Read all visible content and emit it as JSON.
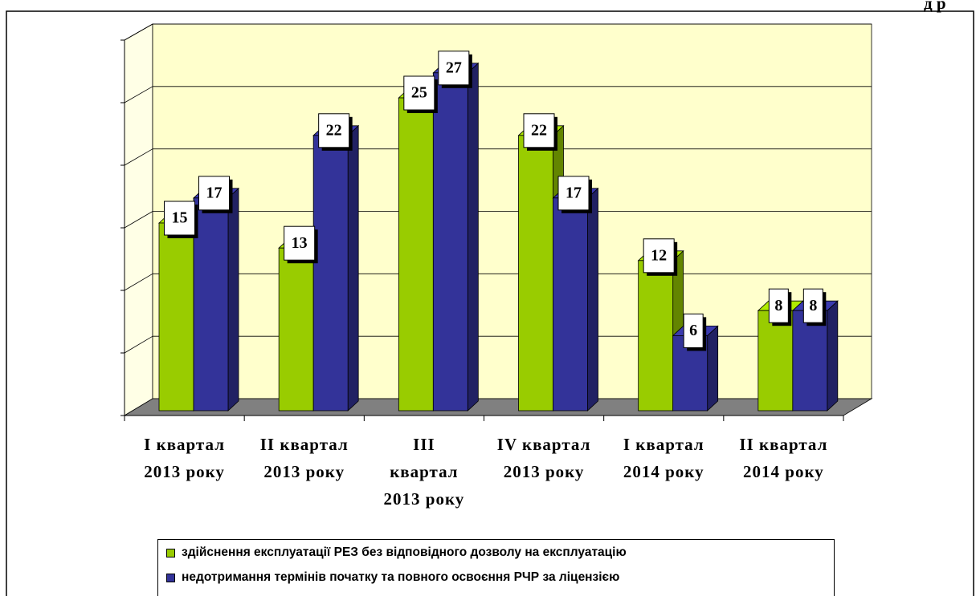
{
  "header_fragment": "д р",
  "chart_data": {
    "type": "bar3d",
    "categories": [
      "I квартал 2013 року",
      "II квартал 2013 року",
      "III квартал 2013 року",
      "IV квартал 2013 року",
      "I квартал 2014 року",
      "II квартал 2014 року"
    ],
    "series": [
      {
        "name": "здійснення експлуатації РЕЗ без відповідного дозволу на експлуатацію",
        "color": "#99cc00",
        "values": [
          15,
          13,
          25,
          22,
          12,
          8
        ]
      },
      {
        "name": "недотримання термінів початку та повного освоєння РЧР за ліцензією",
        "color": "#333399",
        "values": [
          17,
          22,
          27,
          17,
          6,
          8
        ]
      }
    ],
    "ylim": [
      0,
      30
    ],
    "yticks": [
      0,
      5,
      10,
      15,
      20,
      25,
      30
    ],
    "grid": true,
    "legend": "bottom"
  }
}
